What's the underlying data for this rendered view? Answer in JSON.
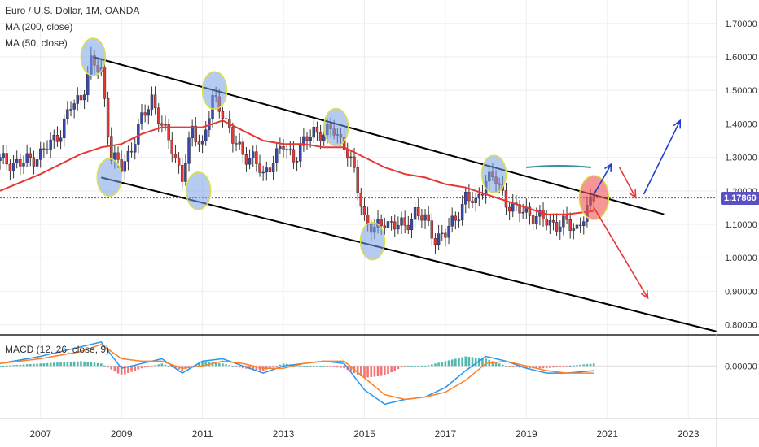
{
  "chart_data": {
    "type": "line",
    "title": "Euro / U.S. Dollar, 1M, OANDA",
    "price_panel": {
      "ylim": [
        0.77,
        1.77
      ],
      "y_ticks": [
        0.8,
        0.9,
        1.0,
        1.1,
        1.2,
        1.3,
        1.4,
        1.5,
        1.6,
        1.7
      ],
      "y_tick_labels": [
        "0.80000",
        "0.90000",
        "1.00000",
        "1.10000",
        "1.20000",
        "1.30000",
        "1.40000",
        "1.50000",
        "1.60000",
        "1.70000"
      ],
      "current_price": 1.1786,
      "current_price_label": "1.17860",
      "candles_approx": [
        [
          2006.0,
          1.29
        ],
        [
          2006.5,
          1.28
        ],
        [
          2007.0,
          1.31
        ],
        [
          2007.25,
          1.34
        ],
        [
          2007.5,
          1.38
        ],
        [
          2007.75,
          1.45
        ],
        [
          2008.0,
          1.48
        ],
        [
          2008.25,
          1.58
        ],
        [
          2008.5,
          1.56
        ],
        [
          2008.75,
          1.3
        ],
        [
          2009.0,
          1.27
        ],
        [
          2009.25,
          1.33
        ],
        [
          2009.5,
          1.41
        ],
        [
          2009.75,
          1.48
        ],
        [
          2010.0,
          1.39
        ],
        [
          2010.25,
          1.33
        ],
        [
          2010.5,
          1.24
        ],
        [
          2010.75,
          1.38
        ],
        [
          2011.0,
          1.34
        ],
        [
          2011.25,
          1.47
        ],
        [
          2011.5,
          1.44
        ],
        [
          2011.75,
          1.35
        ],
        [
          2012.0,
          1.31
        ],
        [
          2012.25,
          1.3
        ],
        [
          2012.5,
          1.24
        ],
        [
          2012.75,
          1.3
        ],
        [
          2013.0,
          1.33
        ],
        [
          2013.25,
          1.3
        ],
        [
          2013.5,
          1.34
        ],
        [
          2013.75,
          1.38
        ],
        [
          2014.0,
          1.37
        ],
        [
          2014.25,
          1.38
        ],
        [
          2014.5,
          1.34
        ],
        [
          2014.75,
          1.25
        ],
        [
          2015.0,
          1.12
        ],
        [
          2015.25,
          1.08
        ],
        [
          2015.5,
          1.11
        ],
        [
          2015.75,
          1.1
        ],
        [
          2016.0,
          1.09
        ],
        [
          2016.25,
          1.14
        ],
        [
          2016.5,
          1.11
        ],
        [
          2016.75,
          1.06
        ],
        [
          2017.0,
          1.07
        ],
        [
          2017.25,
          1.12
        ],
        [
          2017.5,
          1.18
        ],
        [
          2017.75,
          1.16
        ],
        [
          2018.0,
          1.24
        ],
        [
          2018.25,
          1.23
        ],
        [
          2018.5,
          1.17
        ],
        [
          2018.75,
          1.14
        ],
        [
          2019.0,
          1.14
        ],
        [
          2019.25,
          1.12
        ],
        [
          2019.5,
          1.11
        ],
        [
          2019.75,
          1.1
        ],
        [
          2020.0,
          1.1
        ],
        [
          2020.25,
          1.09
        ],
        [
          2020.5,
          1.14
        ],
        [
          2020.67,
          1.18
        ]
      ],
      "ma50_approx": [
        [
          2006.0,
          1.2
        ],
        [
          2007.0,
          1.25
        ],
        [
          2008.0,
          1.31
        ],
        [
          2008.5,
          1.33
        ],
        [
          2009.0,
          1.34
        ],
        [
          2009.5,
          1.37
        ],
        [
          2010.0,
          1.39
        ],
        [
          2011.0,
          1.39
        ],
        [
          2011.5,
          1.41
        ],
        [
          2012.0,
          1.38
        ],
        [
          2012.5,
          1.35
        ],
        [
          2013.0,
          1.34
        ],
        [
          2013.5,
          1.34
        ],
        [
          2014.0,
          1.33
        ],
        [
          2014.5,
          1.33
        ],
        [
          2015.0,
          1.3
        ],
        [
          2015.5,
          1.27
        ],
        [
          2016.0,
          1.25
        ],
        [
          2016.5,
          1.24
        ],
        [
          2017.0,
          1.22
        ],
        [
          2017.5,
          1.21
        ],
        [
          2018.0,
          1.19
        ],
        [
          2018.5,
          1.17
        ],
        [
          2019.0,
          1.15
        ],
        [
          2019.5,
          1.13
        ],
        [
          2020.0,
          1.13
        ],
        [
          2020.67,
          1.14
        ]
      ]
    },
    "macd_panel": {
      "ylim": [
        -0.22,
        0.13
      ],
      "y_ticks": [
        0.0
      ],
      "y_tick_labels": [
        "0.00000"
      ],
      "macd_approx": [
        [
          2006.0,
          0.01
        ],
        [
          2007.0,
          0.04
        ],
        [
          2008.0,
          0.08
        ],
        [
          2008.5,
          0.1
        ],
        [
          2009.0,
          -0.01
        ],
        [
          2009.5,
          0.01
        ],
        [
          2010.0,
          0.03
        ],
        [
          2010.5,
          -0.03
        ],
        [
          2011.0,
          0.02
        ],
        [
          2011.5,
          0.03
        ],
        [
          2012.0,
          0.0
        ],
        [
          2012.5,
          -0.03
        ],
        [
          2013.0,
          0.0
        ],
        [
          2013.5,
          0.01
        ],
        [
          2014.0,
          0.02
        ],
        [
          2014.5,
          0.01
        ],
        [
          2015.0,
          -0.1
        ],
        [
          2015.5,
          -0.16
        ],
        [
          2016.0,
          -0.14
        ],
        [
          2016.5,
          -0.13
        ],
        [
          2017.0,
          -0.09
        ],
        [
          2017.5,
          -0.02
        ],
        [
          2018.0,
          0.04
        ],
        [
          2018.5,
          0.02
        ],
        [
          2019.0,
          -0.01
        ],
        [
          2019.5,
          -0.03
        ],
        [
          2020.0,
          -0.03
        ],
        [
          2020.67,
          -0.02
        ]
      ],
      "signal_approx": [
        [
          2006.0,
          0.01
        ],
        [
          2007.0,
          0.03
        ],
        [
          2008.0,
          0.06
        ],
        [
          2008.5,
          0.09
        ],
        [
          2009.0,
          0.03
        ],
        [
          2009.5,
          0.02
        ],
        [
          2010.0,
          0.02
        ],
        [
          2010.5,
          -0.01
        ],
        [
          2011.0,
          0.0
        ],
        [
          2011.5,
          0.02
        ],
        [
          2012.0,
          0.01
        ],
        [
          2012.5,
          -0.01
        ],
        [
          2013.0,
          -0.01
        ],
        [
          2013.5,
          0.01
        ],
        [
          2014.0,
          0.02
        ],
        [
          2014.5,
          0.02
        ],
        [
          2015.0,
          -0.05
        ],
        [
          2015.5,
          -0.12
        ],
        [
          2016.0,
          -0.14
        ],
        [
          2016.5,
          -0.13
        ],
        [
          2017.0,
          -0.11
        ],
        [
          2017.5,
          -0.06
        ],
        [
          2018.0,
          0.01
        ],
        [
          2018.5,
          0.02
        ],
        [
          2019.0,
          0.0
        ],
        [
          2019.5,
          -0.02
        ],
        [
          2020.0,
          -0.03
        ],
        [
          2020.67,
          -0.03
        ]
      ]
    },
    "x_ticks": [
      2007,
      2009,
      2011,
      2013,
      2015,
      2017,
      2019,
      2021,
      2023
    ],
    "x_tick_labels": [
      "2007",
      "2009",
      "2011",
      "2013",
      "2015",
      "2017",
      "2019",
      "2021",
      "2023"
    ],
    "xlim": [
      2006.0,
      2023.7
    ],
    "annotations": {
      "channel_upper": [
        [
          2008.3,
          1.6
        ],
        [
          2022.4,
          1.13
        ]
      ],
      "channel_lower": [
        [
          2008.5,
          1.24
        ],
        [
          2023.7,
          0.78
        ]
      ],
      "touch_points": [
        [
          2008.3,
          1.6
        ],
        [
          2011.3,
          1.5
        ],
        [
          2014.3,
          1.39
        ],
        [
          2018.2,
          1.25
        ],
        [
          2008.7,
          1.24
        ],
        [
          2010.9,
          1.2
        ],
        [
          2015.2,
          1.05
        ]
      ],
      "highlight_point": [
        2020.67,
        1.18
      ],
      "projection_up_small": [
        [
          2020.67,
          1.19
        ],
        [
          2021.1,
          1.28
        ]
      ],
      "projection_down": [
        [
          2020.67,
          1.15
        ],
        [
          2022.0,
          0.88
        ]
      ],
      "projection_dip": [
        [
          2021.3,
          1.27
        ],
        [
          2021.7,
          1.18
        ]
      ],
      "projection_up_large": [
        [
          2021.9,
          1.19
        ],
        [
          2022.8,
          1.41
        ]
      ],
      "horizontal_mark": [
        [
          2019.0,
          1.27
        ],
        [
          2020.6,
          1.27
        ]
      ]
    },
    "legend": [
      "MA (200, close)",
      "MA (50, close)"
    ],
    "macd_label": "MACD (12, 26, close, 9)",
    "colors": {
      "up_candle": "#3949ab",
      "down_candle": "#e53935",
      "ma50": "#e53935",
      "macd": "#2196f3",
      "signal": "#ff7f27",
      "hist_pos": "#26a69a",
      "hist_neg": "#ef5350",
      "current_price": "#5b4fc7",
      "projection_up": "#1e3dd1",
      "projection_down": "#e53935"
    }
  }
}
